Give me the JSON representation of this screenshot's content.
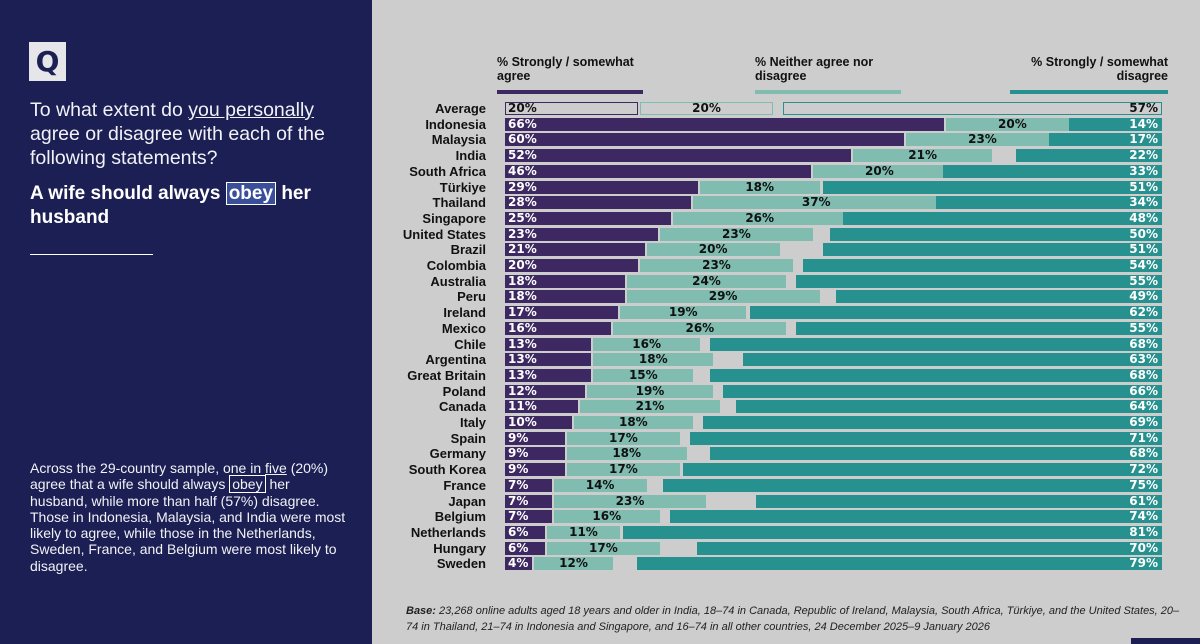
{
  "panel": {
    "badge": "Q",
    "question_pre": "To what extent do ",
    "question_underlined": "you personally",
    "question_post": " agree or disagree with each of the following statements?",
    "statement_pre": "A wife should always ",
    "statement_boxed": "obey",
    "statement_post": " her husband",
    "summary_1": "Across the 29-country sample, one in ",
    "summary_underlined": "five",
    "summary_2": " (20%) agree that a wife should always ",
    "summary_boxed": "obey",
    "summary_3": " her husband, while more than half (57%) disagree. Those in Indonesia, Malaysia, and India were most likely to agree, while those in the Netherlands, Sweden, France, and Belgium were most likely to disagree."
  },
  "legend": {
    "agree": "% Strongly / somewhat agree",
    "neither": "% Neither agree nor disagree",
    "disagree": "% Strongly / somewhat disagree"
  },
  "colors": {
    "agree": "#3d2862",
    "neither": "#80bdb0",
    "disagree": "#26918e",
    "panel": "#1b1f54"
  },
  "chart_data": {
    "type": "bar",
    "orientation": "horizontal",
    "stacked": true,
    "title": "A wife should always obey her husband",
    "categories": [
      "Average",
      "Indonesia",
      "Malaysia",
      "India",
      "South Africa",
      "Türkiye",
      "Thailand",
      "Singapore",
      "United States",
      "Brazil",
      "Colombia",
      "Australia",
      "Peru",
      "Ireland",
      "Mexico",
      "Chile",
      "Argentina",
      "Great Britain",
      "Poland",
      "Canada",
      "Italy",
      "Spain",
      "Germany",
      "South Korea",
      "France",
      "Japan",
      "Belgium",
      "Netherlands",
      "Hungary",
      "Sweden"
    ],
    "series": [
      {
        "name": "% Strongly / somewhat agree",
        "values": [
          20,
          66,
          60,
          52,
          46,
          29,
          28,
          25,
          23,
          21,
          20,
          18,
          18,
          17,
          16,
          13,
          13,
          13,
          12,
          11,
          10,
          9,
          9,
          9,
          7,
          7,
          7,
          6,
          6,
          4
        ]
      },
      {
        "name": "% Neither agree nor disagree",
        "values": [
          20,
          20,
          23,
          21,
          20,
          18,
          37,
          26,
          23,
          20,
          23,
          24,
          29,
          19,
          26,
          16,
          18,
          15,
          19,
          21,
          18,
          17,
          18,
          17,
          14,
          23,
          16,
          11,
          17,
          12
        ]
      },
      {
        "name": "% Strongly / somewhat disagree",
        "values": [
          57,
          14,
          17,
          22,
          33,
          51,
          34,
          48,
          50,
          51,
          54,
          55,
          49,
          62,
          55,
          68,
          63,
          68,
          66,
          64,
          69,
          71,
          68,
          72,
          75,
          61,
          74,
          81,
          70,
          79
        ]
      }
    ],
    "xlim": [
      0,
      100
    ]
  },
  "footnote": {
    "label": "Base:",
    "text": " 23,268 online adults aged 18 years and older in India, 18–74 in Canada, Republic of Ireland, Malaysia, South Africa, Türkiye, and the United States, 20–74 in Thailand, 21–74 in Indonesia and Singapore, and 16–74 in all other countries, 24 December 2025–9 January 2026"
  }
}
